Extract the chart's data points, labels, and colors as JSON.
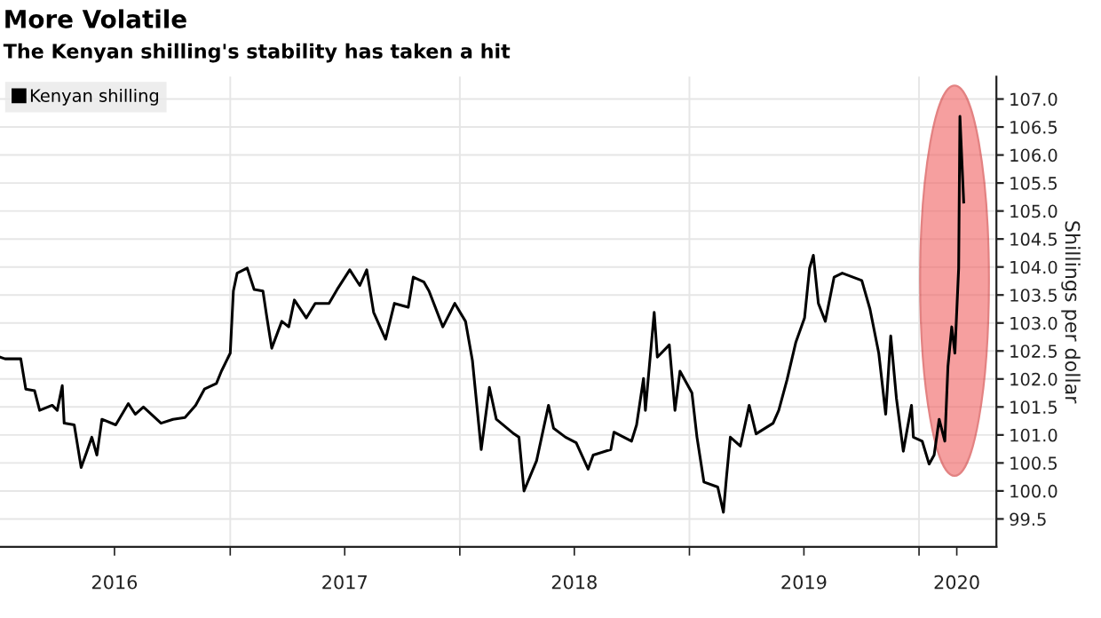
{
  "chart_data": {
    "type": "line",
    "title": "More Volatile",
    "subtitle": "The Kenyan shilling's stability has taken a hit",
    "ylabel": "Shillings per dollar",
    "x": [
      "2016-01-01",
      "2016-01-09",
      "2016-02-03",
      "2016-02-11",
      "2016-02-25",
      "2016-03-04",
      "2016-03-24",
      "2016-04-01",
      "2016-04-09",
      "2016-04-12",
      "2016-04-28",
      "2016-05-09",
      "2016-05-18",
      "2016-05-26",
      "2016-06-03",
      "2016-06-11",
      "2016-07-03",
      "2016-07-23",
      "2016-08-03",
      "2016-08-16",
      "2016-09-13",
      "2016-10-02",
      "2016-10-21",
      "2016-11-07",
      "2016-11-21",
      "2016-12-10",
      "2016-12-18",
      "2017-01-01",
      "2017-01-06",
      "2017-01-12",
      "2017-01-28",
      "2017-02-08",
      "2017-02-22",
      "2017-02-28",
      "2017-03-08",
      "2017-03-24",
      "2017-04-04",
      "2017-04-13",
      "2017-05-02",
      "2017-05-16",
      "2017-06-07",
      "2017-06-20",
      "2017-07-10",
      "2017-07-26",
      "2017-08-06",
      "2017-08-17",
      "2017-09-05",
      "2017-09-19",
      "2017-10-11",
      "2017-10-19",
      "2017-11-05",
      "2017-11-13",
      "2017-12-05",
      "2017-12-24",
      "2018-01-10",
      "2018-01-21",
      "2018-02-04",
      "2018-02-17",
      "2018-02-28",
      "2018-03-28",
      "2018-04-05",
      "2018-04-13",
      "2018-05-03",
      "2018-05-22",
      "2018-05-30",
      "2018-06-18",
      "2018-07-05",
      "2018-07-24",
      "2018-08-01",
      "2018-08-29",
      "2018-09-03",
      "2018-10-01",
      "2018-10-09",
      "2018-10-20",
      "2018-10-23",
      "2018-11-06",
      "2018-11-11",
      "2018-11-30",
      "2018-12-09",
      "2018-12-17",
      "2019-01-05",
      "2019-01-13",
      "2019-01-24",
      "2019-02-15",
      "2019-02-24",
      "2019-03-01",
      "2019-03-07",
      "2019-03-23",
      "2019-04-06",
      "2019-04-17",
      "2019-05-14",
      "2019-05-23",
      "2019-06-05",
      "2019-06-19",
      "2019-07-03",
      "2019-07-11",
      "2019-07-17",
      "2019-07-25",
      "2019-08-05",
      "2019-08-19",
      "2019-09-01",
      "2019-10-02",
      "2019-10-15",
      "2019-10-29",
      "2019-11-09",
      "2019-11-17",
      "2019-11-26",
      "2019-12-07",
      "2019-12-20",
      "2019-12-23",
      "2020-01-06",
      "2020-01-17",
      "2020-01-25",
      "2020-02-02",
      "2020-02-11",
      "2020-02-16",
      "2020-02-22",
      "2020-02-27",
      "2020-03-04",
      "2020-03-06",
      "2020-03-12"
    ],
    "series": [
      {
        "name": "Kenyan shilling",
        "color": "#000000",
        "values": [
          102.39,
          102.36,
          102.36,
          101.82,
          101.79,
          101.44,
          101.53,
          101.44,
          101.88,
          101.21,
          101.18,
          100.42,
          100.7,
          100.96,
          100.64,
          101.28,
          101.18,
          101.56,
          101.37,
          101.5,
          101.21,
          101.28,
          101.31,
          101.53,
          101.82,
          101.92,
          102.14,
          102.46,
          103.57,
          103.89,
          103.98,
          103.6,
          103.57,
          103.12,
          102.55,
          103.03,
          102.93,
          103.41,
          103.09,
          103.35,
          103.35,
          103.6,
          103.95,
          103.67,
          103.95,
          103.19,
          102.71,
          103.35,
          103.28,
          103.82,
          103.73,
          103.57,
          102.93,
          103.35,
          103.03,
          102.33,
          100.74,
          101.85,
          101.28,
          101.02,
          100.96,
          100.0,
          100.54,
          101.53,
          101.12,
          100.96,
          100.86,
          100.39,
          100.64,
          100.74,
          101.05,
          100.89,
          101.18,
          102.01,
          101.44,
          103.19,
          102.39,
          102.61,
          101.44,
          102.14,
          101.75,
          100.96,
          100.16,
          100.07,
          99.62,
          100.26,
          100.96,
          100.8,
          101.53,
          101.02,
          101.21,
          101.44,
          101.98,
          102.65,
          103.09,
          103.98,
          104.21,
          103.35,
          103.03,
          103.82,
          103.89,
          103.76,
          103.25,
          102.46,
          101.37,
          102.77,
          101.66,
          100.71,
          101.53,
          100.96,
          100.89,
          100.48,
          100.64,
          101.28,
          100.89,
          102.23,
          102.93,
          102.46,
          103.98,
          106.69,
          105.16
        ]
      }
    ],
    "xlim": [
      "2016-01-01",
      "2020-05-03"
    ],
    "xticks": [
      {
        "value": "2016-07-01",
        "label": "2016"
      },
      {
        "value": "2017-01-01",
        "label": null
      },
      {
        "value": "2017-07-02",
        "label": "2017"
      },
      {
        "value": "2018-01-01",
        "label": null
      },
      {
        "value": "2018-07-02",
        "label": "2018"
      },
      {
        "value": "2019-01-01",
        "label": null
      },
      {
        "value": "2019-07-02",
        "label": "2019"
      },
      {
        "value": "2020-01-01",
        "label": null
      },
      {
        "value": "2020-03-01",
        "label": "2020"
      }
    ],
    "ylim": [
      99.0,
      107.4
    ],
    "yticks": [
      {
        "value": 99.5,
        "label": "99.5"
      },
      {
        "value": 100.0,
        "label": "100.0"
      },
      {
        "value": 100.5,
        "label": "100.5"
      },
      {
        "value": 101.0,
        "label": "101.0"
      },
      {
        "value": 101.5,
        "label": "101.5"
      },
      {
        "value": 102.0,
        "label": "102.0"
      },
      {
        "value": 102.5,
        "label": "102.5"
      },
      {
        "value": 103.0,
        "label": "103.0"
      },
      {
        "value": 103.5,
        "label": "103.5"
      },
      {
        "value": 104.0,
        "label": "104.0"
      },
      {
        "value": 104.5,
        "label": "104.5"
      },
      {
        "value": 105.0,
        "label": "105.0"
      },
      {
        "value": 105.5,
        "label": "105.5"
      },
      {
        "value": 106.0,
        "label": "106.0"
      },
      {
        "value": 106.5,
        "label": "106.5"
      },
      {
        "value": 107.0,
        "label": "107.0"
      }
    ],
    "grid": true,
    "legend": "top left",
    "marker": "none",
    "line_style": "solid"
  }
}
